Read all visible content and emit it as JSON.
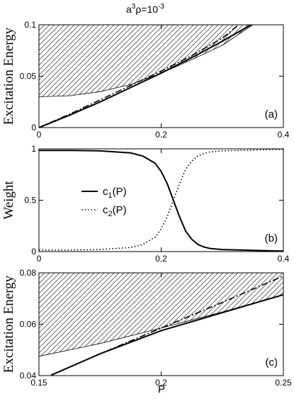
{
  "title": {
    "base": "a",
    "sup1": "3",
    "rho": "ρ=10",
    "sup2": "-3"
  },
  "xlabel": "P",
  "chart_data": [
    {
      "type": "line",
      "panel_label": "(a)",
      "ylabel": "Excitation Energy",
      "xlim": [
        0,
        0.4
      ],
      "ylim": [
        0,
        0.1
      ],
      "xticks": [
        0,
        0.2,
        0.4
      ],
      "xtick_labels": [
        "0",
        "0.2",
        "0.4"
      ],
      "yticks": [
        0,
        0.05,
        0.1
      ],
      "ytick_labels": [
        "0",
        "0.05",
        "0.1"
      ],
      "hatched_region": {
        "lower_x": [
          0,
          0.05,
          0.1,
          0.15,
          0.2,
          0.25,
          0.3,
          0.35
        ],
        "lower_y": [
          0.03,
          0.031,
          0.035,
          0.042,
          0.053,
          0.066,
          0.08,
          0.1
        ],
        "top": 0.1
      },
      "series": [
        {
          "style": "solid",
          "x": [
            0,
            0.05,
            0.1,
            0.15,
            0.2,
            0.25,
            0.3,
            0.347
          ],
          "y": [
            0,
            0.012,
            0.025,
            0.039,
            0.053,
            0.068,
            0.084,
            0.1
          ]
        },
        {
          "style": "dash-dot",
          "x": [
            0,
            0.05,
            0.1,
            0.15,
            0.2,
            0.25,
            0.3,
            0.327
          ],
          "y": [
            0,
            0.013,
            0.027,
            0.041,
            0.055,
            0.07,
            0.087,
            0.1
          ]
        }
      ]
    },
    {
      "type": "line",
      "panel_label": "(b)",
      "ylabel": "Weight",
      "xlim": [
        0,
        0.4
      ],
      "ylim": [
        0,
        1
      ],
      "xticks": [
        0,
        0.2,
        0.4
      ],
      "xtick_labels": [
        "0",
        "0.2",
        "0.4"
      ],
      "yticks": [
        0,
        0.5,
        1
      ],
      "ytick_labels": [
        "0",
        "0.5",
        "1"
      ],
      "series": [
        {
          "name": "c",
          "sub": "1",
          "suffix": "(P)",
          "style": "solid",
          "x": [
            0,
            0.05,
            0.1,
            0.15,
            0.17,
            0.19,
            0.2,
            0.21,
            0.22,
            0.23,
            0.24,
            0.25,
            0.26,
            0.27,
            0.28,
            0.3,
            0.35,
            0.4
          ],
          "y": [
            0.985,
            0.985,
            0.98,
            0.96,
            0.93,
            0.86,
            0.78,
            0.66,
            0.5,
            0.34,
            0.2,
            0.12,
            0.07,
            0.045,
            0.03,
            0.02,
            0.012,
            0.005
          ]
        },
        {
          "name": "c",
          "sub": "2",
          "suffix": "(P)",
          "style": "dotted",
          "x": [
            0,
            0.05,
            0.1,
            0.15,
            0.17,
            0.19,
            0.2,
            0.21,
            0.22,
            0.23,
            0.24,
            0.25,
            0.26,
            0.27,
            0.28,
            0.3,
            0.35,
            0.4
          ],
          "y": [
            0.015,
            0.015,
            0.02,
            0.04,
            0.07,
            0.14,
            0.22,
            0.34,
            0.5,
            0.66,
            0.8,
            0.88,
            0.93,
            0.955,
            0.97,
            0.98,
            0.988,
            0.995
          ]
        }
      ]
    },
    {
      "type": "line",
      "panel_label": "(c)",
      "ylabel": "Excitation Energy",
      "xlim": [
        0.15,
        0.25
      ],
      "ylim": [
        0.04,
        0.08
      ],
      "xticks": [
        0.15,
        0.2,
        0.25
      ],
      "xtick_labels": [
        "0.15",
        "0.2",
        "0.25"
      ],
      "yticks": [
        0.04,
        0.06,
        0.08
      ],
      "ytick_labels": [
        "0.04",
        "0.06",
        "0.08"
      ],
      "hatched_region": {
        "lower_x": [
          0.15,
          0.175,
          0.2,
          0.225,
          0.25
        ],
        "lower_y": [
          0.0475,
          0.0525,
          0.0585,
          0.0648,
          0.0715
        ],
        "top": 0.08
      },
      "series": [
        {
          "style": "solid",
          "x": [
            0.155,
            0.175,
            0.2,
            0.225,
            0.25
          ],
          "y": [
            0.0402,
            0.0485,
            0.0575,
            0.0645,
            0.0715
          ]
        },
        {
          "style": "dash-dot",
          "x": [
            0.155,
            0.175,
            0.2,
            0.225,
            0.25
          ],
          "y": [
            0.0402,
            0.0485,
            0.0585,
            0.0685,
            0.0788
          ]
        }
      ]
    }
  ]
}
